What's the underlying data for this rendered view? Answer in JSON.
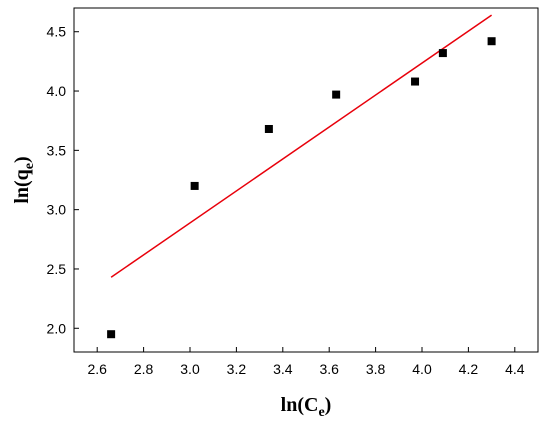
{
  "chart_data": {
    "type": "scatter",
    "title": "",
    "xlabel": {
      "base": "ln(C",
      "sub": "e",
      "close": ")"
    },
    "ylabel": {
      "base": "ln(q",
      "sub": "e",
      "close": ")"
    },
    "xlim": [
      2.5,
      4.5
    ],
    "ylim": [
      1.8,
      4.7
    ],
    "x_ticks": [
      "2.6",
      "2.8",
      "3.0",
      "3.2",
      "3.4",
      "3.6",
      "3.8",
      "4.0",
      "4.2",
      "4.4"
    ],
    "y_ticks": [
      "2.0",
      "2.5",
      "3.0",
      "3.5",
      "4.0",
      "4.5"
    ],
    "grid": false,
    "series": [
      {
        "kind": "points",
        "marker": "square",
        "color": "#000000",
        "x": [
          2.66,
          3.02,
          3.34,
          3.63,
          3.97,
          4.09,
          4.3
        ],
        "y": [
          1.95,
          3.2,
          3.68,
          3.97,
          4.08,
          4.32,
          4.42
        ]
      },
      {
        "kind": "fit-line",
        "color": "#e8000b",
        "x": [
          2.66,
          4.3
        ],
        "y": [
          2.43,
          4.64
        ]
      }
    ]
  }
}
